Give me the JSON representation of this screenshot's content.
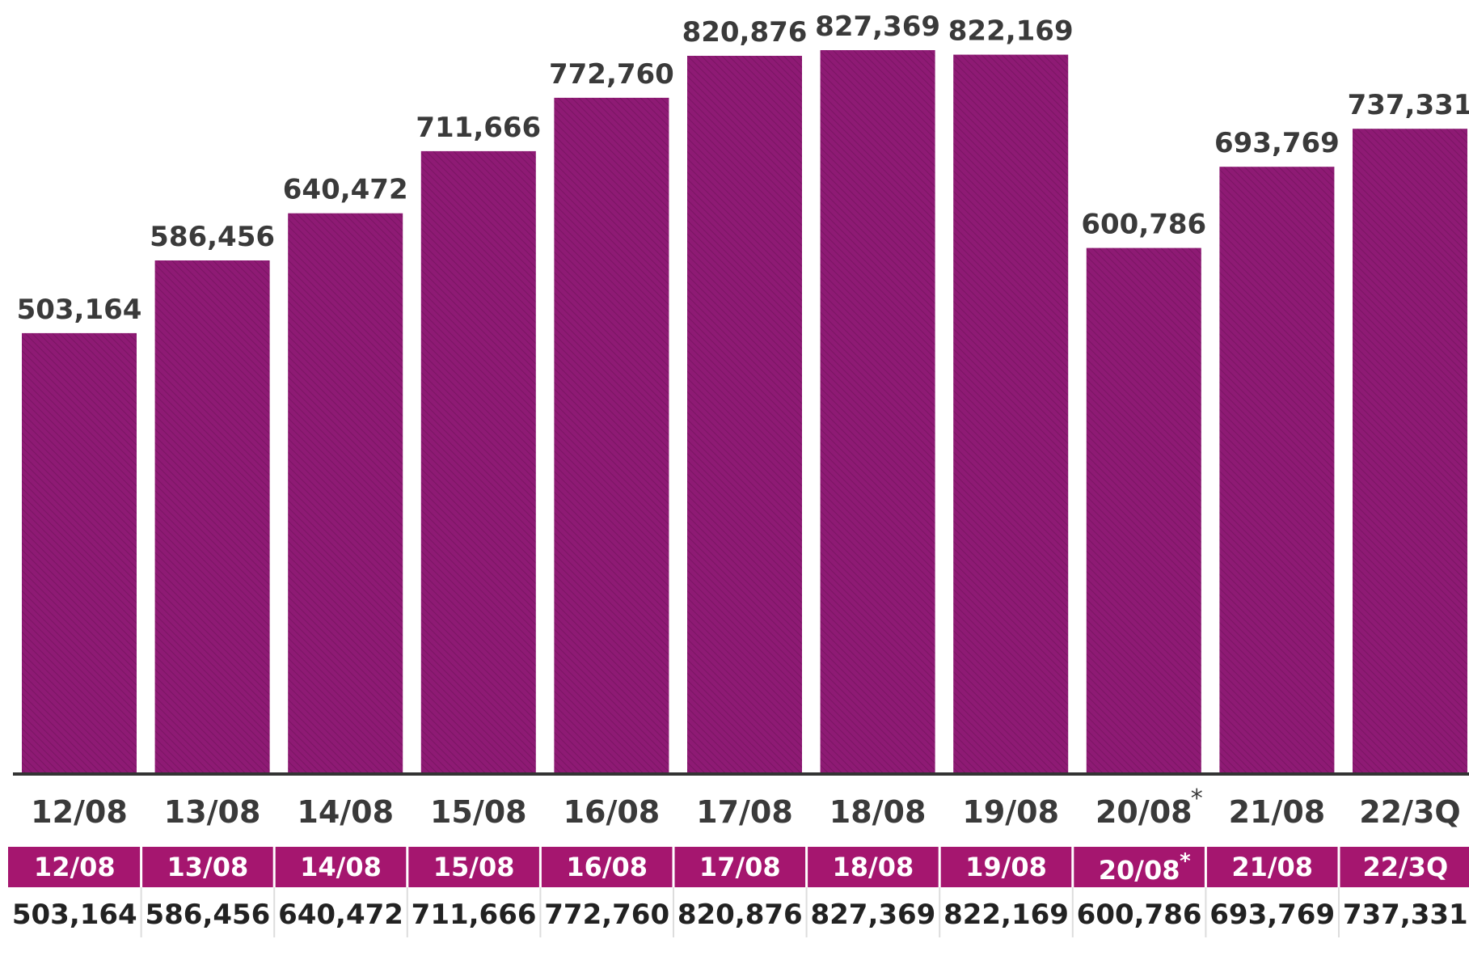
{
  "chart_data": {
    "type": "bar",
    "categories": [
      "12/08",
      "13/08",
      "14/08",
      "15/08",
      "16/08",
      "17/08",
      "18/08",
      "19/08",
      "20/08",
      "21/08",
      "22/3Q"
    ],
    "values": [
      503164,
      586456,
      640472,
      711666,
      772760,
      820876,
      827369,
      822169,
      600786,
      693769,
      737331
    ],
    "value_labels": [
      "503,164",
      "586,456",
      "640,472",
      "711,666",
      "772,760",
      "820,876",
      "827,369",
      "822,169",
      "600,786",
      "693,769",
      "737,331"
    ],
    "marked_categories": [
      "20/08"
    ],
    "marker": "*",
    "ylim": [
      0,
      827369
    ],
    "bar_color": "#8e1a74",
    "grid": false,
    "legend": "none",
    "title": "",
    "xlabel": "",
    "ylabel": ""
  },
  "table": {
    "header_color": "#a5166f",
    "header": [
      "12/08",
      "13/08",
      "14/08",
      "15/08",
      "16/08",
      "17/08",
      "18/08",
      "19/08",
      "20/08",
      "21/08",
      "22/3Q"
    ],
    "row": [
      "503,164",
      "586,456",
      "640,472",
      "711,666",
      "772,760",
      "820,876",
      "827,369",
      "822,169",
      "600,786",
      "693,769",
      "737,331"
    ]
  }
}
